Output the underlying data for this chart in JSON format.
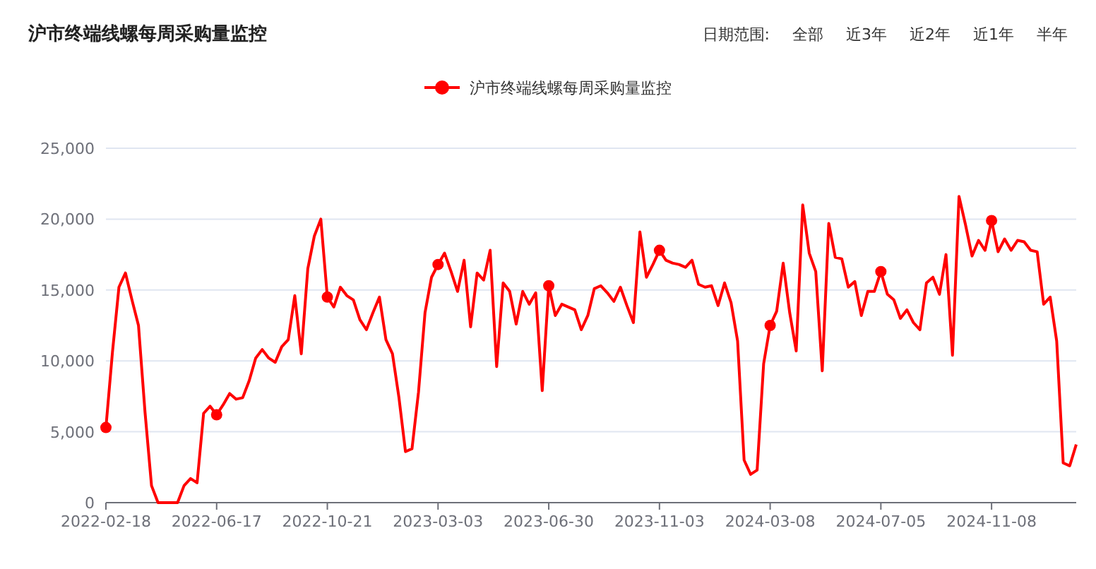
{
  "chart_data": {
    "type": "line",
    "title": "沪市终端线螺每周采购量监控",
    "annotations": [
      "日期范围:",
      "全部",
      "近3年",
      "近2年",
      "近1年",
      "半年"
    ],
    "categories": [
      "2022-02-18",
      null,
      null,
      null,
      null,
      null,
      null,
      null,
      null,
      null,
      null,
      null,
      null,
      null,
      null,
      null,
      null,
      "2022-06-17",
      null,
      null,
      null,
      null,
      null,
      null,
      null,
      null,
      null,
      null,
      null,
      null,
      null,
      null,
      null,
      null,
      "2022-10-21",
      null,
      null,
      null,
      null,
      null,
      null,
      null,
      null,
      null,
      null,
      null,
      null,
      null,
      null,
      null,
      null,
      "2023-03-03",
      null,
      null,
      null,
      null,
      null,
      null,
      null,
      null,
      null,
      null,
      null,
      null,
      null,
      null,
      null,
      null,
      "2023-06-30",
      null,
      null,
      null,
      null,
      null,
      null,
      null,
      null,
      null,
      null,
      null,
      null,
      null,
      null,
      null,
      null,
      "2023-11-03",
      null,
      null,
      null,
      null,
      null,
      null,
      null,
      null,
      null,
      null,
      null,
      null,
      null,
      null,
      null,
      null,
      "2024-03-08",
      null,
      null,
      null,
      null,
      null,
      null,
      null,
      null,
      null,
      null,
      null,
      null,
      null,
      null,
      null,
      null,
      "2024-07-05",
      null,
      null,
      null,
      null,
      null,
      null,
      null,
      null,
      null,
      null,
      null,
      null,
      null,
      null,
      null,
      null,
      "2024-11-08",
      null,
      null,
      null,
      null,
      null,
      null,
      null,
      null,
      null,
      null,
      null,
      null,
      null
    ],
    "series": [
      {
        "name": "沪市终端线螺每周采购量监控",
        "color": "#ff0000",
        "values": [
          5300,
          10600,
          15200,
          16200,
          14300,
          12500,
          6400,
          1200,
          0,
          0,
          0,
          0,
          1200,
          1700,
          1400,
          6300,
          6800,
          6200,
          6900,
          7700,
          7300,
          7400,
          8600,
          10200,
          10800,
          10200,
          9900,
          11000,
          11500,
          14600,
          10500,
          16500,
          18800,
          20000,
          14500,
          13800,
          15200,
          14600,
          14300,
          12900,
          12200,
          13400,
          14500,
          11500,
          10500,
          7400,
          3600,
          3800,
          7800,
          13400,
          15900,
          16800,
          17600,
          16300,
          14900,
          17100,
          12400,
          16200,
          15700,
          17800,
          9600,
          15500,
          14900,
          12600,
          14900,
          14000,
          14800,
          7900,
          15300,
          13200,
          14000,
          13800,
          13600,
          12200,
          13200,
          15100,
          15300,
          14800,
          14200,
          15200,
          13900,
          12700,
          19100,
          15900,
          16800,
          17800,
          17100,
          16900,
          16800,
          16600,
          17100,
          15400,
          15200,
          15300,
          13900,
          15500,
          14100,
          11400,
          3000,
          2000,
          2300,
          9800,
          12500,
          13500,
          16900,
          13400,
          10700,
          21000,
          17600,
          16300,
          9300,
          19700,
          17300,
          17200,
          15200,
          15600,
          13200,
          14900,
          14900,
          16300,
          14700,
          14300,
          13000,
          13600,
          12700,
          12200,
          15500,
          15900,
          14700,
          17500,
          10400,
          21600,
          19600,
          17400,
          18500,
          17800,
          19900,
          17700,
          18600,
          17800,
          18500,
          18400,
          17800,
          17700,
          14000,
          14500,
          11400,
          2800,
          2600,
          4100
        ]
      },
      {
        "type": "scatter",
        "color": "#ff0000",
        "values": [
          5300,
          null,
          null,
          null,
          null,
          null,
          null,
          null,
          null,
          null,
          null,
          null,
          null,
          null,
          null,
          null,
          null,
          6200,
          null,
          null,
          null,
          null,
          null,
          null,
          null,
          null,
          null,
          null,
          null,
          null,
          null,
          null,
          null,
          null,
          14500,
          null,
          null,
          null,
          null,
          null,
          null,
          null,
          null,
          null,
          null,
          null,
          null,
          null,
          null,
          null,
          null,
          16800,
          null,
          null,
          null,
          null,
          null,
          null,
          null,
          null,
          null,
          null,
          null,
          null,
          null,
          null,
          null,
          null,
          15300,
          null,
          null,
          null,
          null,
          null,
          null,
          null,
          null,
          null,
          null,
          null,
          null,
          null,
          null,
          null,
          null,
          17800,
          null,
          null,
          null,
          null,
          null,
          null,
          null,
          null,
          null,
          null,
          null,
          null,
          null,
          null,
          null,
          null,
          12500,
          null,
          null,
          null,
          null,
          null,
          null,
          null,
          null,
          null,
          null,
          null,
          null,
          null,
          null,
          null,
          null,
          16300,
          null,
          null,
          null,
          null,
          null,
          null,
          null,
          null,
          null,
          null,
          null,
          null,
          null,
          null,
          null,
          null,
          19900,
          null,
          null,
          null,
          null,
          null,
          null,
          null,
          null,
          null,
          null,
          null,
          null,
          null
        ]
      }
    ],
    "ylim": [
      0,
      25000
    ],
    "yticks": [
      0,
      {
        "value": 5000,
        "label": "5,000"
      },
      {
        "value": 10000,
        "label": "10,000"
      },
      {
        "value": 15000,
        "label": "15,000"
      },
      {
        "value": 20000,
        "label": "20,000"
      },
      {
        "value": 25000,
        "label": "25,000"
      }
    ],
    "grid": "y",
    "legend": "top",
    "line_style": "solid"
  }
}
